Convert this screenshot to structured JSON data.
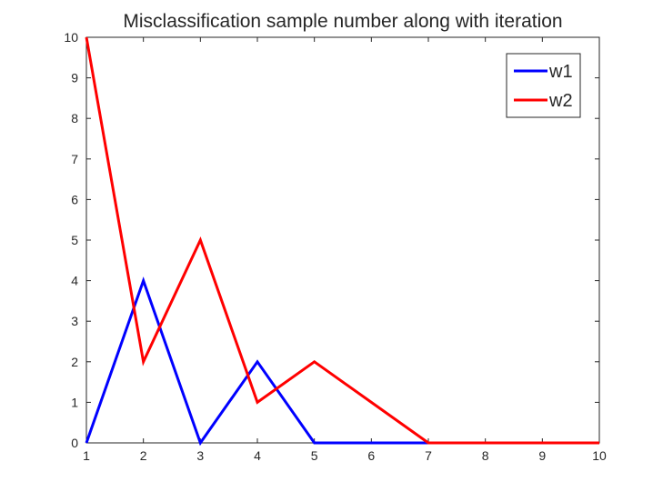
{
  "chart_data": {
    "type": "line",
    "title": "Misclassification sample number along with iteration",
    "xlabel": "",
    "ylabel": "",
    "xlim": [
      1,
      10
    ],
    "ylim": [
      0,
      10
    ],
    "x_ticks": [
      1,
      2,
      3,
      4,
      5,
      6,
      7,
      8,
      9,
      10
    ],
    "y_ticks": [
      0,
      1,
      2,
      3,
      4,
      5,
      6,
      7,
      8,
      9,
      10
    ],
    "grid": false,
    "legend_position": "top-right",
    "x": [
      1,
      2,
      3,
      4,
      5,
      6,
      7,
      8,
      9,
      10
    ],
    "series": [
      {
        "name": "w1",
        "color": "#0000ff",
        "values": [
          0,
          4,
          0,
          2,
          0,
          0,
          0,
          0,
          0,
          0
        ]
      },
      {
        "name": "w2",
        "color": "#ff0000",
        "values": [
          10,
          2,
          5,
          1,
          2,
          1,
          0,
          0,
          0,
          0
        ]
      }
    ]
  }
}
